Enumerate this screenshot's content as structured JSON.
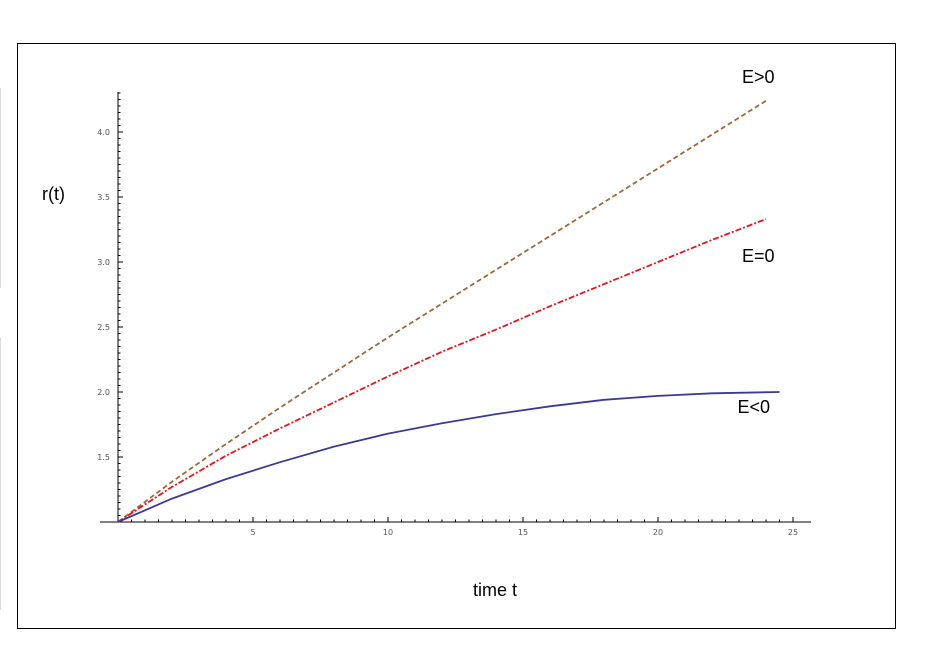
{
  "chart_data": {
    "type": "line",
    "title": "",
    "xlabel": "time t",
    "ylabel": "r(t)",
    "xlim": [
      0,
      25
    ],
    "ylim": [
      1,
      4.3
    ],
    "x_origin": 0,
    "y_origin": 1.0,
    "xticks": [
      5,
      10,
      15,
      20,
      25
    ],
    "xtick_labels": [
      "5",
      "10",
      "15",
      "20",
      "25"
    ],
    "yticks": [
      1.5,
      2.0,
      2.5,
      3.0,
      3.5,
      4.0
    ],
    "ytick_labels": [
      "1.5",
      "2.0",
      "2.5",
      "3.0",
      "3.5",
      "4.0"
    ],
    "grid": false,
    "legend": "none",
    "series": [
      {
        "label": "E>0",
        "color": "#a0693a",
        "style": "dashed",
        "x": [
          0,
          2,
          4,
          6,
          8,
          10,
          12,
          14,
          16,
          18,
          20,
          22,
          24
        ],
        "y": [
          1.0,
          1.31,
          1.6,
          1.88,
          2.15,
          2.42,
          2.68,
          2.94,
          3.2,
          3.46,
          3.72,
          3.98,
          4.24
        ]
      },
      {
        "label": "E=0",
        "color": "#e8141c",
        "style": "dashdot",
        "x": [
          0,
          2,
          4,
          6,
          8,
          10,
          12,
          14,
          16,
          18,
          20,
          22,
          24
        ],
        "y": [
          1.0,
          1.27,
          1.51,
          1.72,
          1.92,
          2.12,
          2.31,
          2.48,
          2.66,
          2.83,
          3.0,
          3.17,
          3.33
        ]
      },
      {
        "label": "E<0",
        "color": "#3b3b96",
        "style": "solid",
        "x": [
          0,
          2,
          4,
          6,
          8,
          10,
          12,
          14,
          16,
          18,
          20,
          22,
          24.5
        ],
        "y": [
          1.0,
          1.18,
          1.33,
          1.46,
          1.58,
          1.68,
          1.76,
          1.83,
          1.89,
          1.94,
          1.97,
          1.99,
          2.0
        ]
      }
    ]
  }
}
